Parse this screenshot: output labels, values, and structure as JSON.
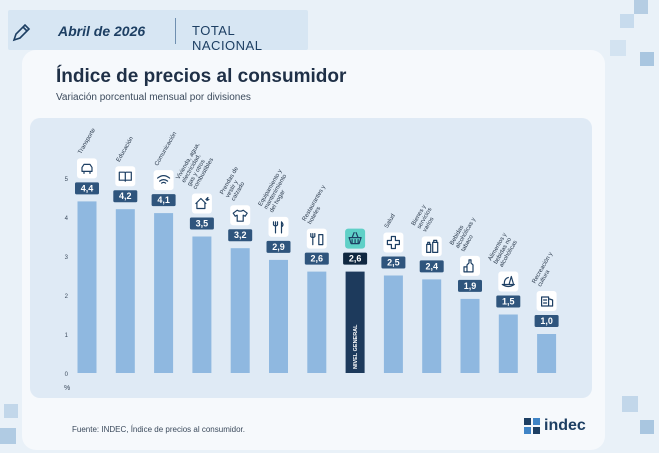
{
  "header": {
    "date": "Abril de 2026",
    "region": "TOTAL NACIONAL"
  },
  "title": "Índice de precios al consumidor",
  "subtitle": "Variación porcentual mensual por divisiones",
  "source": "Fuente: INDEC, Índice de precios al consumidor.",
  "logo": "indec",
  "colors": {
    "bar": "#8fb8e0",
    "highlight_bar": "#1d3a5c",
    "label_bg": "#2f557d",
    "label_highlight_bg": "#0f2740",
    "icon_highlight_bg": "#5fd0c7"
  },
  "chart_data": {
    "type": "bar",
    "ylabel": "%",
    "ylim": [
      0,
      5
    ],
    "yticks": [
      "0",
      "1",
      "2",
      "3",
      "4",
      "5"
    ],
    "grid": false,
    "highlight": "NIVEL GENERAL",
    "categories": [
      "Transporte",
      "Educación",
      "Comunicación",
      "Vivienda, agua, electricidad, gas y otros combustibles",
      "Prendas de vestir y calzado",
      "Equipamiento y mantenimiento del hogar",
      "Restaurantes y hoteles",
      "NIVEL GENERAL",
      "Salud",
      "Bienes y servicios varios",
      "Bebidas alcohólicas y tabaco",
      "Alimentos y bebidas no alcohólicas",
      "Recreación y cultura"
    ],
    "values": [
      4.4,
      4.2,
      4.1,
      3.5,
      3.2,
      2.9,
      2.6,
      2.6,
      2.5,
      2.4,
      1.9,
      1.5,
      1.0
    ],
    "value_labels": [
      "4,4",
      "4,2",
      "4,1",
      "3,5",
      "3,2",
      "2,9",
      "2,6",
      "2,6",
      "2,5",
      "2,4",
      "1,9",
      "1,5",
      "1,0"
    ],
    "icons": [
      "car-icon",
      "book-icon",
      "wifi-icon",
      "house-icon",
      "shirt-icon",
      "tools-icon",
      "fork-knife-icon",
      "basket-icon",
      "health-cross-icon",
      "bottles-icon",
      "bottle-icon",
      "food-icon",
      "leisure-icon"
    ]
  }
}
